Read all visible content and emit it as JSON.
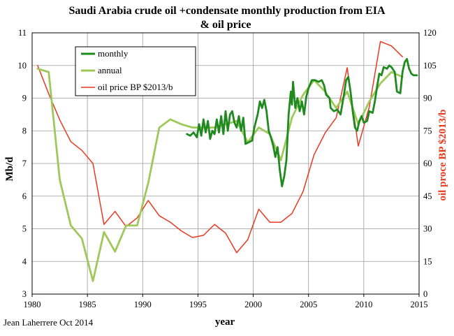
{
  "chart_data": {
    "type": "line",
    "title": "Saudi Arabia crude oil +condensate monthly production from EIA",
    "subtitle": "& oil price",
    "xlabel": "year",
    "ylabel": "Mb/d",
    "y2label": "oil proce BP $2013/b",
    "credit": "Jean Laherrere Oct 2014",
    "xlim": [
      1980,
      2015
    ],
    "ylim": [
      3,
      11
    ],
    "y2lim": [
      0,
      120
    ],
    "x_ticks": [
      "1980",
      "1985",
      "1990",
      "1995",
      "2000",
      "2005",
      "2010",
      "2015"
    ],
    "y_ticks": [
      "3",
      "4",
      "5",
      "6",
      "7",
      "8",
      "9",
      "10",
      "11"
    ],
    "y2_ticks": [
      "0",
      "15",
      "30",
      "45",
      "60",
      "75",
      "90",
      "105",
      "120"
    ],
    "grid": true,
    "legend_position": "top-left",
    "series": [
      {
        "name": "monthly",
        "axis": "left",
        "color": "#1f8a1f",
        "points": [
          [
            1994.0,
            7.9
          ],
          [
            1994.3,
            7.85
          ],
          [
            1994.6,
            7.95
          ],
          [
            1994.9,
            7.8
          ],
          [
            1995.1,
            8.2
          ],
          [
            1995.3,
            7.85
          ],
          [
            1995.5,
            8.35
          ],
          [
            1995.7,
            7.95
          ],
          [
            1995.9,
            8.3
          ],
          [
            1996.1,
            7.75
          ],
          [
            1996.3,
            8.0
          ],
          [
            1996.5,
            7.9
          ],
          [
            1996.7,
            8.35
          ],
          [
            1996.9,
            7.95
          ],
          [
            1997.1,
            8.45
          ],
          [
            1997.3,
            7.9
          ],
          [
            1997.5,
            8.6
          ],
          [
            1997.7,
            8.0
          ],
          [
            1997.9,
            8.5
          ],
          [
            1998.1,
            8.6
          ],
          [
            1998.3,
            8.25
          ],
          [
            1998.5,
            8.1
          ],
          [
            1998.7,
            8.45
          ],
          [
            1998.9,
            8.0
          ],
          [
            1999.1,
            8.4
          ],
          [
            1999.3,
            7.6
          ],
          [
            1999.6,
            7.65
          ],
          [
            1999.9,
            7.7
          ],
          [
            2000.1,
            8.1
          ],
          [
            2000.4,
            8.5
          ],
          [
            2000.6,
            8.9
          ],
          [
            2000.8,
            8.7
          ],
          [
            2001.0,
            8.95
          ],
          [
            2001.2,
            8.6
          ],
          [
            2001.4,
            8.0
          ],
          [
            2001.6,
            7.8
          ],
          [
            2001.8,
            7.55
          ],
          [
            2002.0,
            7.2
          ],
          [
            2002.2,
            7.5
          ],
          [
            2002.4,
            6.8
          ],
          [
            2002.6,
            6.3
          ],
          [
            2002.8,
            6.6
          ],
          [
            2003.0,
            7.1
          ],
          [
            2003.2,
            8.5
          ],
          [
            2003.4,
            9.2
          ],
          [
            2003.5,
            8.8
          ],
          [
            2003.6,
            9.5
          ],
          [
            2003.8,
            8.7
          ],
          [
            2004.0,
            9.0
          ],
          [
            2004.2,
            8.6
          ],
          [
            2004.4,
            8.9
          ],
          [
            2004.6,
            8.5
          ],
          [
            2004.8,
            9.05
          ],
          [
            2005.0,
            9.3
          ],
          [
            2005.3,
            9.55
          ],
          [
            2005.6,
            9.55
          ],
          [
            2005.9,
            9.5
          ],
          [
            2006.2,
            9.55
          ],
          [
            2006.4,
            9.4
          ],
          [
            2006.6,
            9.1
          ],
          [
            2006.9,
            9.0
          ],
          [
            2007.0,
            8.7
          ],
          [
            2007.3,
            8.6
          ],
          [
            2007.6,
            8.65
          ],
          [
            2007.9,
            8.5
          ],
          [
            2008.2,
            9.1
          ],
          [
            2008.4,
            9.55
          ],
          [
            2008.6,
            9.65
          ],
          [
            2008.8,
            9.2
          ],
          [
            2009.0,
            8.6
          ],
          [
            2009.2,
            8.1
          ],
          [
            2009.4,
            8.0
          ],
          [
            2009.6,
            8.3
          ],
          [
            2009.8,
            8.45
          ],
          [
            2010.0,
            8.25
          ],
          [
            2010.3,
            8.3
          ],
          [
            2010.5,
            8.6
          ],
          [
            2010.8,
            8.55
          ],
          [
            2011.0,
            8.9
          ],
          [
            2011.2,
            9.35
          ],
          [
            2011.4,
            9.75
          ],
          [
            2011.6,
            9.7
          ],
          [
            2011.8,
            9.95
          ],
          [
            2012.1,
            9.9
          ],
          [
            2012.3,
            10.0
          ],
          [
            2012.5,
            9.95
          ],
          [
            2012.8,
            9.8
          ],
          [
            2013.0,
            9.2
          ],
          [
            2013.3,
            9.15
          ],
          [
            2013.5,
            9.8
          ],
          [
            2013.7,
            10.1
          ],
          [
            2013.9,
            10.2
          ],
          [
            2014.1,
            9.9
          ],
          [
            2014.3,
            9.75
          ],
          [
            2014.5,
            9.7
          ],
          [
            2014.8,
            9.7
          ]
        ]
      },
      {
        "name": "annual",
        "axis": "left",
        "color": "#9ec95a",
        "points": [
          [
            1980.5,
            9.9
          ],
          [
            1981.5,
            9.8
          ],
          [
            1982.5,
            6.5
          ],
          [
            1983.5,
            5.1
          ],
          [
            1984.5,
            4.7
          ],
          [
            1985.5,
            3.4
          ],
          [
            1986.5,
            4.9
          ],
          [
            1987.5,
            4.3
          ],
          [
            1988.5,
            5.1
          ],
          [
            1989.5,
            5.1
          ],
          [
            1990.5,
            6.4
          ],
          [
            1991.5,
            8.1
          ],
          [
            1992.5,
            8.35
          ],
          [
            1993.5,
            8.2
          ],
          [
            1994.5,
            8.1
          ],
          [
            1995.5,
            8.1
          ],
          [
            1996.5,
            8.1
          ],
          [
            1997.5,
            8.2
          ],
          [
            1998.5,
            8.3
          ],
          [
            1999.5,
            7.65
          ],
          [
            2000.5,
            8.1
          ],
          [
            2001.5,
            7.9
          ],
          [
            2002.5,
            7.1
          ],
          [
            2003.5,
            8.4
          ],
          [
            2004.5,
            9.1
          ],
          [
            2005.5,
            9.55
          ],
          [
            2006.5,
            9.2
          ],
          [
            2007.5,
            8.7
          ],
          [
            2008.5,
            9.2
          ],
          [
            2009.5,
            8.2
          ],
          [
            2010.5,
            8.9
          ],
          [
            2011.5,
            9.45
          ],
          [
            2012.5,
            9.8
          ],
          [
            2013.5,
            9.65
          ]
        ]
      },
      {
        "name": "oil price BP $2013/b",
        "axis": "right",
        "color": "#e8391e",
        "points": [
          [
            1980.5,
            105
          ],
          [
            1981.5,
            92
          ],
          [
            1982.5,
            80
          ],
          [
            1983.5,
            70
          ],
          [
            1984.5,
            66
          ],
          [
            1985.5,
            60
          ],
          [
            1986.5,
            32
          ],
          [
            1987.5,
            38
          ],
          [
            1988.5,
            31
          ],
          [
            1989.5,
            35
          ],
          [
            1990.5,
            43
          ],
          [
            1991.5,
            36
          ],
          [
            1992.5,
            33
          ],
          [
            1993.5,
            29
          ],
          [
            1994.5,
            26
          ],
          [
            1995.5,
            27
          ],
          [
            1996.5,
            32
          ],
          [
            1997.5,
            28
          ],
          [
            1998.5,
            19
          ],
          [
            1999.5,
            25
          ],
          [
            2000.5,
            39
          ],
          [
            2001.5,
            33
          ],
          [
            2002.5,
            33
          ],
          [
            2003.5,
            37
          ],
          [
            2004.5,
            47
          ],
          [
            2005.5,
            64
          ],
          [
            2006.5,
            74
          ],
          [
            2007.5,
            81
          ],
          [
            2008.5,
            104
          ],
          [
            2009.5,
            68
          ],
          [
            2010.5,
            86
          ],
          [
            2011.5,
            116
          ],
          [
            2012.5,
            114
          ],
          [
            2013.5,
            109
          ]
        ]
      }
    ]
  }
}
